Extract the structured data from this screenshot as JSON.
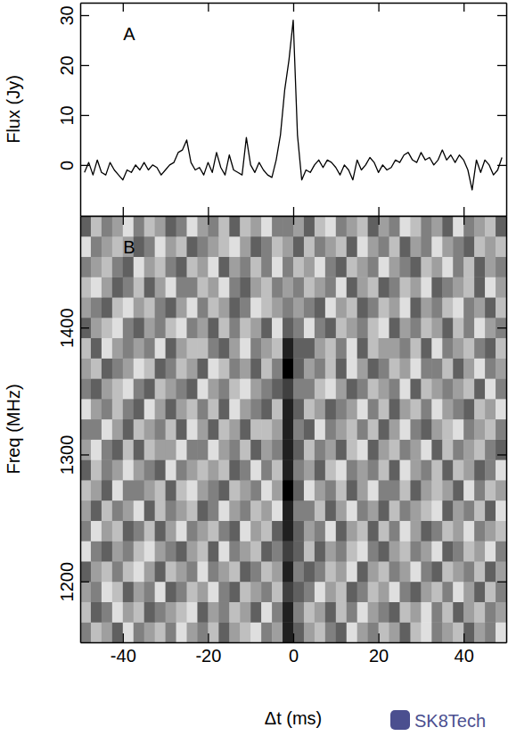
{
  "chart_data": [
    {
      "type": "line",
      "annotation": "A",
      "y_label": "Flux (Jy)",
      "color": "#000000",
      "tick_labels": "y",
      "xlim": [
        -50,
        50
      ],
      "ylim": [
        -10.2,
        32.5
      ],
      "xticks": [
        -40,
        -20,
        0,
        20,
        40
      ],
      "yticks": [
        0,
        10,
        20,
        30
      ],
      "x": [
        -49,
        -48,
        -47,
        -46,
        -45,
        -44,
        -43,
        -42,
        -41,
        -40,
        -39,
        -38,
        -37,
        -36,
        -35,
        -34,
        -33,
        -32,
        -31,
        -30,
        -29,
        -28,
        -27,
        -26,
        -25,
        -24,
        -23,
        -22,
        -21,
        -20,
        -19,
        -18,
        -17,
        -16,
        -15,
        -14,
        -13,
        -12,
        -11,
        -10,
        -9,
        -8,
        -7,
        -6,
        -5,
        -4,
        -3,
        -2,
        -1,
        0,
        1,
        2,
        3,
        4,
        5,
        6,
        7,
        8,
        9,
        10,
        11,
        12,
        13,
        14,
        15,
        16,
        17,
        18,
        19,
        20,
        21,
        22,
        23,
        24,
        25,
        26,
        27,
        28,
        29,
        30,
        31,
        32,
        33,
        34,
        35,
        36,
        37,
        38,
        39,
        40,
        41,
        42,
        43,
        44,
        45,
        46,
        47,
        48,
        49
      ],
      "values": [
        -1.5,
        0.5,
        -2,
        1,
        -1.5,
        -2,
        0.5,
        -1,
        -2,
        -3,
        -1,
        -1.5,
        0,
        -1,
        0.5,
        -1,
        0,
        -0.5,
        -2,
        -1,
        0,
        0.5,
        2.5,
        3,
        5,
        0.5,
        -1,
        -0.5,
        -2,
        0.5,
        -1.5,
        2.5,
        -0.5,
        -2,
        2,
        -1,
        -1.5,
        -2,
        5.5,
        0,
        -1.5,
        0.5,
        -1,
        -2,
        -2.5,
        1,
        6,
        15,
        21,
        29,
        6,
        -3,
        -1,
        -1.5,
        0,
        1,
        -0.5,
        1,
        0.5,
        -0.5,
        -2,
        0,
        -1,
        -3,
        1,
        -1,
        0,
        1.5,
        0.5,
        -1.5,
        0,
        -1,
        -0.5,
        1,
        0.5,
        2,
        2.5,
        1,
        0.5,
        2.5,
        1,
        1.5,
        0,
        1,
        3,
        1,
        2,
        0.5,
        2,
        1,
        -1,
        -5,
        1,
        -1.5,
        1,
        0,
        -2,
        -1,
        1.5
      ]
    },
    {
      "type": "heatmap",
      "annotation": "B",
      "x_label": "Δt (ms)",
      "y_label": "Freq (MHz)",
      "xlim": [
        -50,
        50
      ],
      "ylim": [
        1152,
        1488
      ],
      "xticks": [
        -40,
        -20,
        0,
        20,
        40
      ],
      "yticks": [
        1200,
        1300,
        1400
      ],
      "zlim": [
        -3,
        5
      ],
      "x": [
        -48.75,
        -46.25,
        -43.75,
        -41.25,
        -38.75,
        -36.25,
        -33.75,
        -31.25,
        -28.75,
        -26.25,
        -23.75,
        -21.25,
        -18.75,
        -16.25,
        -13.75,
        -11.25,
        -8.75,
        -6.25,
        -3.75,
        -1.25,
        1.25,
        3.75,
        6.25,
        8.75,
        11.25,
        13.75,
        16.25,
        18.75,
        21.25,
        23.75,
        26.25,
        28.75,
        31.25,
        33.75,
        36.25,
        38.75,
        41.25,
        43.75,
        46.25,
        48.75
      ],
      "y": [
        1160,
        1176,
        1192,
        1208,
        1224,
        1240,
        1256,
        1272,
        1288,
        1304,
        1320,
        1336,
        1352,
        1368,
        1384,
        1400,
        1416,
        1432,
        1448,
        1464,
        1480
      ],
      "cells": [
        [
          1,
          -1,
          0,
          2,
          -2,
          1,
          0,
          -1,
          1,
          -2,
          0,
          1,
          -1,
          2,
          0,
          -1,
          -2,
          1,
          0,
          4,
          2,
          0,
          -1,
          1,
          2,
          -2,
          0,
          1,
          -1,
          0,
          2,
          -1,
          -2,
          1,
          0,
          -1,
          2,
          0,
          1,
          -2
        ],
        [
          -1,
          2,
          1,
          -2,
          0,
          -1,
          2,
          1,
          0,
          -1,
          -2,
          2,
          0,
          1,
          -1,
          0,
          2,
          -2,
          1,
          4,
          1,
          -1,
          0,
          2,
          -1,
          1,
          -2,
          0,
          1,
          2,
          -1,
          0,
          -2,
          1,
          -1,
          2,
          0,
          -1,
          1,
          0
        ],
        [
          0,
          1,
          -2,
          -1,
          2,
          0,
          1,
          -2,
          2,
          1,
          -1,
          0,
          -2,
          1,
          2,
          -1,
          0,
          1,
          -1,
          3,
          2,
          1,
          -2,
          0,
          -1,
          2,
          1,
          -1,
          0,
          -2,
          1,
          2,
          0,
          -1,
          1,
          -2,
          0,
          2,
          -1,
          1
        ],
        [
          2,
          0,
          -1,
          1,
          -1,
          -2,
          0,
          2,
          -1,
          0,
          1,
          -2,
          1,
          0,
          -1,
          2,
          1,
          -1,
          0,
          4,
          1,
          2,
          1,
          -1,
          0,
          -2,
          2,
          0,
          -1,
          1,
          0,
          -2,
          1,
          2,
          -1,
          0,
          1,
          -1,
          2,
          0
        ],
        [
          -2,
          1,
          2,
          0,
          1,
          -1,
          -2,
          0,
          1,
          2,
          0,
          -1,
          2,
          -2,
          1,
          0,
          -1,
          2,
          1,
          3,
          2,
          -1,
          2,
          0,
          1,
          -1,
          -2,
          1,
          2,
          0,
          -1,
          1,
          0,
          -2,
          2,
          1,
          -1,
          0,
          -2,
          1
        ],
        [
          1,
          -2,
          0,
          -1,
          2,
          1,
          -1,
          2,
          0,
          -2,
          1,
          0,
          -1,
          1,
          2,
          -2,
          0,
          -1,
          2,
          4,
          2,
          0,
          1,
          -2,
          2,
          0,
          -1,
          2,
          -1,
          1,
          -2,
          0,
          2,
          1,
          -1,
          0,
          -2,
          1,
          0,
          -1
        ],
        [
          0,
          2,
          -1,
          1,
          0,
          -2,
          2,
          -1,
          1,
          0,
          -1,
          2,
          1,
          -2,
          0,
          1,
          -1,
          0,
          -2,
          4,
          1,
          1,
          -1,
          2,
          0,
          -2,
          1,
          0,
          2,
          -1,
          1,
          0,
          -1,
          -2,
          2,
          0,
          1,
          -1,
          2,
          -2
        ],
        [
          -1,
          0,
          2,
          -2,
          1,
          1,
          0,
          -1,
          2,
          -1,
          -2,
          0,
          1,
          2,
          -1,
          0,
          1,
          -2,
          0,
          5,
          2,
          -2,
          0,
          1,
          -1,
          2,
          0,
          -2,
          1,
          1,
          -1,
          2,
          0,
          -1,
          0,
          2,
          -2,
          1,
          -1,
          0
        ],
        [
          2,
          -1,
          1,
          0,
          -2,
          0,
          1,
          2,
          -2,
          1,
          0,
          -1,
          0,
          -1,
          2,
          1,
          -2,
          1,
          -1,
          4,
          1,
          0,
          2,
          -1,
          -2,
          1,
          0,
          1,
          -1,
          2,
          -2,
          0,
          1,
          -1,
          2,
          -1,
          0,
          2,
          1,
          -2
        ],
        [
          0,
          -2,
          1,
          2,
          -1,
          2,
          -1,
          0,
          0,
          -2,
          1,
          1,
          -2,
          0,
          1,
          -1,
          2,
          0,
          1,
          4,
          2,
          -1,
          1,
          0,
          2,
          -1,
          -2,
          2,
          0,
          -1,
          1,
          0,
          -2,
          2,
          -1,
          1,
          0,
          -1,
          1,
          2
        ],
        [
          1,
          1,
          -2,
          0,
          2,
          -1,
          0,
          1,
          -1,
          2,
          -2,
          0,
          2,
          -1,
          0,
          2,
          -1,
          -1,
          0,
          4,
          1,
          2,
          -2,
          1,
          0,
          -1,
          1,
          -1,
          2,
          0,
          -2,
          1,
          2,
          0,
          -1,
          -2,
          1,
          0,
          -1,
          1
        ],
        [
          -2,
          0,
          1,
          -1,
          1,
          2,
          -2,
          0,
          2,
          0,
          -1,
          1,
          -1,
          2,
          -2,
          0,
          1,
          2,
          -1,
          4,
          2,
          -1,
          0,
          2,
          1,
          0,
          -2,
          1,
          -1,
          2,
          0,
          -1,
          1,
          -2,
          0,
          1,
          2,
          -1,
          0,
          -2
        ],
        [
          1,
          2,
          0,
          -1,
          -2,
          1,
          2,
          -1,
          0,
          1,
          2,
          -2,
          0,
          1,
          -1,
          -2,
          0,
          1,
          2,
          3,
          1,
          1,
          -1,
          -2,
          0,
          2,
          1,
          -1,
          0,
          1,
          -2,
          2,
          -1,
          0,
          1,
          0,
          -1,
          2,
          -2,
          1
        ],
        [
          0,
          -1,
          2,
          1,
          0,
          -2,
          -1,
          2,
          1,
          -1,
          0,
          2,
          -2,
          -1,
          1,
          0,
          2,
          -1,
          1,
          5,
          2,
          0,
          1,
          -1,
          2,
          -2,
          0,
          2,
          1,
          -1,
          0,
          -2,
          1,
          1,
          -1,
          2,
          0,
          -2,
          1,
          0
        ],
        [
          -1,
          2,
          -2,
          0,
          1,
          0,
          1,
          -2,
          2,
          0,
          -1,
          -1,
          1,
          2,
          0,
          -2,
          1,
          0,
          -1,
          4,
          2,
          2,
          0,
          -1,
          1,
          -2,
          2,
          -1,
          0,
          0,
          1,
          -1,
          2,
          -2,
          1,
          0,
          -1,
          1,
          2,
          -1
        ],
        [
          2,
          0,
          -1,
          -2,
          1,
          2,
          0,
          1,
          -1,
          -2,
          1,
          0,
          2,
          -1,
          1,
          -1,
          0,
          2,
          -2,
          2,
          1,
          -2,
          1,
          2,
          -1,
          0,
          1,
          -1,
          -2,
          2,
          0,
          1,
          -1,
          0,
          2,
          -1,
          1,
          -2,
          0,
          1
        ],
        [
          0,
          1,
          2,
          -1,
          -2,
          0,
          -1,
          1,
          2,
          0,
          -2,
          1,
          -1,
          0,
          2,
          1,
          -2,
          -1,
          0,
          1,
          0,
          1,
          2,
          -2,
          0,
          -1,
          2,
          1,
          -1,
          0,
          -2,
          2,
          0,
          1,
          -1,
          -2,
          1,
          0,
          2,
          -1
        ],
        [
          -1,
          -2,
          0,
          2,
          1,
          -1,
          2,
          0,
          -2,
          1,
          1,
          -1,
          0,
          -2,
          1,
          2,
          0,
          -1,
          1,
          0,
          1,
          -1,
          0,
          1,
          -2,
          2,
          0,
          -1,
          2,
          1,
          -1,
          0,
          -2,
          2,
          1,
          0,
          -1,
          2,
          -2,
          0
        ],
        [
          1,
          0,
          -1,
          1,
          2,
          -2,
          0,
          -1,
          1,
          2,
          -1,
          0,
          -2,
          2,
          0,
          1,
          -1,
          1,
          -2,
          1,
          -1,
          0,
          -2,
          1,
          2,
          -1,
          0,
          1,
          -2,
          0,
          1,
          2,
          -1,
          0,
          -2,
          1,
          -1,
          2,
          0,
          1
        ],
        [
          -2,
          1,
          0,
          -1,
          0,
          2,
          1,
          -2,
          0,
          -1,
          2,
          1,
          0,
          -1,
          -2,
          0,
          2,
          1,
          -1,
          0,
          2,
          -1,
          1,
          0,
          -1,
          2,
          -2,
          0,
          1,
          -1,
          2,
          0,
          1,
          -2,
          0,
          1,
          2,
          -1,
          0,
          -1
        ],
        [
          2,
          -1,
          1,
          0,
          -2,
          1,
          -1,
          0,
          2,
          1,
          -2,
          0,
          1,
          -1,
          2,
          -1,
          0,
          -2,
          1,
          1,
          0,
          2,
          -1,
          -2,
          1,
          0,
          -1,
          2,
          0,
          1,
          -2,
          -1,
          1,
          0,
          2,
          -2,
          1,
          0,
          -1,
          2
        ]
      ]
    }
  ],
  "watermark": "SK8Tech"
}
